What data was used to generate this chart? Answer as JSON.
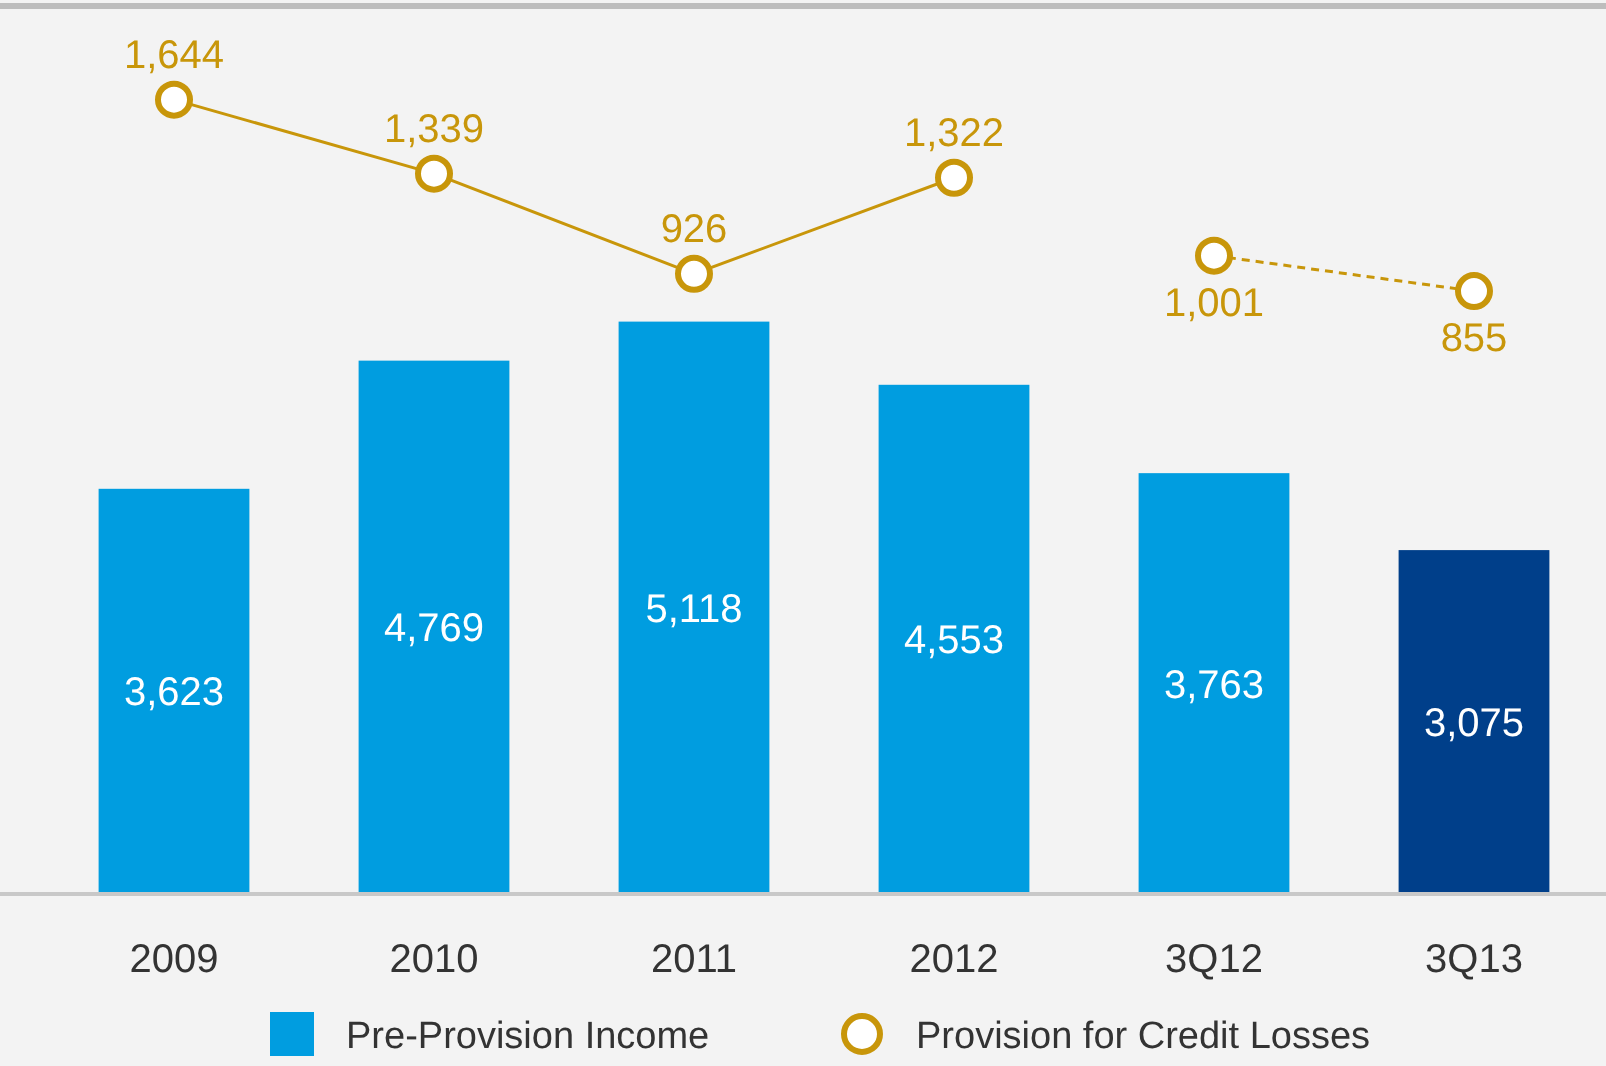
{
  "chart_data": {
    "type": "bar",
    "categories": [
      "2009",
      "2010",
      "2011",
      "2012",
      "3Q12",
      "3Q13"
    ],
    "ylim": [
      0,
      7940
    ],
    "y2lim": [
      -1630,
      2030
    ],
    "legend": "bottom",
    "marker": "circle",
    "series": [
      {
        "name": "Pre-Provision Income",
        "color": "#009de0",
        "colors": [
          "#009de0",
          "#009de0",
          "#009de0",
          "#009de0",
          "#009de0",
          "#003f8a"
        ],
        "values": [
          3623,
          4769,
          5118,
          4553,
          3763,
          3075
        ],
        "value_labels": [
          "3,623",
          "4,769",
          "5,118",
          "4,553",
          "3,763",
          "3,075"
        ]
      },
      {
        "name": "Provision for Credit Losses",
        "type": "line",
        "axis": "y2",
        "color": "#c8960a",
        "line_style": "solid",
        "values": [
          1644,
          1339,
          926,
          1322,
          null,
          null
        ],
        "value_labels": [
          "1,644",
          "1,339",
          "926",
          "1,322",
          null,
          null
        ]
      },
      {
        "type": "line",
        "axis": "y2",
        "color": "#c8960a",
        "line_style": "dashed",
        "values": [
          null,
          null,
          null,
          null,
          1001,
          855
        ],
        "value_labels": [
          null,
          null,
          null,
          null,
          "1,001",
          "855"
        ]
      }
    ]
  }
}
